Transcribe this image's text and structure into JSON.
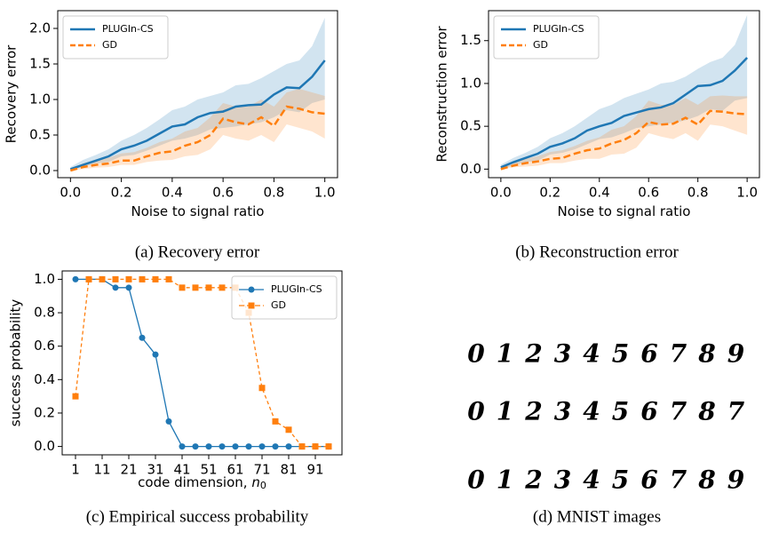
{
  "chart_data": [
    {
      "type": "line",
      "caption": "(a) Recovery error",
      "xlabel": "Noise to signal ratio",
      "ylabel": "Recovery error",
      "x": [
        0,
        0.05,
        0.1,
        0.15,
        0.2,
        0.25,
        0.3,
        0.35,
        0.4,
        0.45,
        0.5,
        0.55,
        0.6,
        0.65,
        0.7,
        0.75,
        0.8,
        0.85,
        0.9,
        0.95,
        1.0
      ],
      "series": [
        {
          "name": "PLUGIn-CS",
          "color": "#1f77b4",
          "dash": false,
          "values": [
            0.02,
            0.08,
            0.14,
            0.2,
            0.3,
            0.35,
            0.42,
            0.52,
            0.62,
            0.65,
            0.75,
            0.81,
            0.83,
            0.9,
            0.92,
            0.93,
            1.07,
            1.17,
            1.16,
            1.32,
            1.55
          ],
          "upper": [
            0.05,
            0.15,
            0.22,
            0.3,
            0.42,
            0.5,
            0.6,
            0.72,
            0.85,
            0.9,
            1.0,
            1.05,
            1.1,
            1.2,
            1.22,
            1.3,
            1.4,
            1.5,
            1.55,
            1.75,
            2.15
          ],
          "lower": [
            0,
            0.05,
            0.1,
            0.12,
            0.2,
            0.22,
            0.28,
            0.35,
            0.42,
            0.45,
            0.5,
            0.58,
            0.6,
            0.62,
            0.65,
            0.68,
            0.75,
            0.85,
            0.82,
            0.95,
            1.0
          ]
        },
        {
          "name": "GD",
          "color": "#ff7f0e",
          "dash": true,
          "values": [
            0,
            0.05,
            0.08,
            0.1,
            0.14,
            0.14,
            0.2,
            0.25,
            0.27,
            0.35,
            0.4,
            0.5,
            0.73,
            0.68,
            0.65,
            0.75,
            0.63,
            0.9,
            0.87,
            0.82,
            0.8
          ],
          "upper": [
            0.02,
            0.1,
            0.15,
            0.18,
            0.24,
            0.26,
            0.32,
            0.4,
            0.45,
            0.55,
            0.6,
            0.75,
            0.95,
            0.9,
            0.9,
            1.0,
            0.9,
            1.1,
            1.15,
            1.1,
            1.05
          ],
          "lower": [
            0,
            0.02,
            0.04,
            0.05,
            0.08,
            0.08,
            0.12,
            0.14,
            0.15,
            0.2,
            0.22,
            0.3,
            0.5,
            0.45,
            0.42,
            0.5,
            0.4,
            0.65,
            0.6,
            0.55,
            0.45
          ]
        }
      ],
      "xlim": [
        -0.05,
        1.05
      ],
      "xticks": [
        {
          "value": 0,
          "label": "0.0"
        },
        0.2,
        0.4,
        0.6,
        0.8,
        {
          "value": 1,
          "label": "1.0"
        }
      ],
      "ylim": [
        -0.1,
        2.25
      ],
      "yticks": [
        {
          "value": 0,
          "label": "0.0"
        },
        0.5,
        {
          "value": 1,
          "label": "1.0"
        },
        1.5,
        {
          "value": 2,
          "label": "2.0"
        }
      ],
      "legend": "upper left"
    },
    {
      "type": "line",
      "caption": "(b) Reconstruction error",
      "xlabel": "Noise to signal ratio",
      "ylabel": "Reconstruction error",
      "x": [
        0,
        0.05,
        0.1,
        0.15,
        0.2,
        0.25,
        0.3,
        0.35,
        0.4,
        0.45,
        0.5,
        0.55,
        0.6,
        0.65,
        0.7,
        0.75,
        0.8,
        0.85,
        0.9,
        0.95,
        1.0
      ],
      "series": [
        {
          "name": "PLUGIn-CS",
          "color": "#1f77b4",
          "dash": false,
          "values": [
            0.02,
            0.08,
            0.13,
            0.18,
            0.26,
            0.3,
            0.36,
            0.45,
            0.5,
            0.54,
            0.62,
            0.66,
            0.7,
            0.72,
            0.77,
            0.87,
            0.97,
            0.98,
            1.03,
            1.15,
            1.3
          ],
          "upper": [
            0.05,
            0.13,
            0.19,
            0.26,
            0.36,
            0.42,
            0.5,
            0.6,
            0.7,
            0.75,
            0.83,
            0.88,
            0.93,
            1.0,
            1.02,
            1.08,
            1.17,
            1.25,
            1.3,
            1.45,
            1.8
          ],
          "lower": [
            0,
            0.04,
            0.08,
            0.1,
            0.17,
            0.19,
            0.23,
            0.29,
            0.35,
            0.37,
            0.42,
            0.48,
            0.5,
            0.52,
            0.54,
            0.57,
            0.62,
            0.7,
            0.68,
            0.8,
            0.83
          ]
        },
        {
          "name": "GD",
          "color": "#ff7f0e",
          "dash": true,
          "values": [
            0,
            0.04,
            0.07,
            0.09,
            0.12,
            0.13,
            0.18,
            0.22,
            0.24,
            0.3,
            0.34,
            0.42,
            0.55,
            0.52,
            0.53,
            0.6,
            0.52,
            0.68,
            0.67,
            0.65,
            0.64
          ],
          "upper": [
            0.02,
            0.08,
            0.12,
            0.15,
            0.2,
            0.22,
            0.27,
            0.33,
            0.37,
            0.46,
            0.5,
            0.62,
            0.8,
            0.75,
            0.75,
            0.83,
            0.75,
            0.85,
            0.86,
            0.85,
            0.85
          ],
          "lower": [
            0,
            0.02,
            0.03,
            0.04,
            0.07,
            0.07,
            0.1,
            0.12,
            0.12,
            0.17,
            0.18,
            0.25,
            0.42,
            0.38,
            0.35,
            0.42,
            0.33,
            0.52,
            0.5,
            0.45,
            0.4
          ]
        }
      ],
      "xlim": [
        -0.05,
        1.05
      ],
      "xticks": [
        {
          "value": 0,
          "label": "0.0"
        },
        0.2,
        0.4,
        0.6,
        0.8,
        {
          "value": 1,
          "label": "1.0"
        }
      ],
      "ylim": [
        -0.1,
        1.85
      ],
      "yticks": [
        {
          "value": 0,
          "label": "0.0"
        },
        0.5,
        {
          "value": 1,
          "label": "1.0"
        },
        1.5
      ],
      "legend": "upper left"
    },
    {
      "type": "line",
      "caption": "(c) Empirical success probability",
      "xlabel": "code dimension, ",
      "xlabel_symbol": "n",
      "xlabel_subscript": "0",
      "ylabel": "success probability",
      "x": [
        1,
        6,
        11,
        16,
        21,
        26,
        31,
        36,
        41,
        46,
        51,
        56,
        61,
        66,
        71,
        76,
        81,
        86,
        91,
        96
      ],
      "series": [
        {
          "name": "PLUGIn-CS",
          "color": "#1f77b4",
          "dash": false,
          "marker": "circle",
          "values": [
            1.0,
            1.0,
            1.0,
            0.95,
            0.95,
            0.65,
            0.55,
            0.15,
            0,
            0,
            0,
            0,
            0,
            0,
            0,
            0,
            0,
            0,
            0,
            0
          ]
        },
        {
          "name": "GD",
          "color": "#ff7f0e",
          "dash": true,
          "marker": "square",
          "values": [
            0.3,
            1.0,
            1.0,
            1.0,
            1.0,
            1.0,
            1.0,
            1.0,
            0.95,
            0.95,
            0.95,
            0.95,
            0.95,
            0.8,
            0.35,
            0.15,
            0.1,
            0,
            0,
            0
          ]
        }
      ],
      "xlim": [
        -4,
        101
      ],
      "xticks": [
        1,
        11,
        21,
        31,
        41,
        51,
        61,
        71,
        81,
        91
      ],
      "ylim": [
        -0.05,
        1.05
      ],
      "yticks": [
        {
          "value": 0,
          "label": "0.0"
        },
        0.2,
        0.4,
        0.6,
        0.8,
        {
          "value": 1,
          "label": "1.0"
        }
      ],
      "legend": "upper right"
    }
  ],
  "mnist": {
    "caption": "(d) MNIST images",
    "rows": [
      [
        "0",
        "1",
        "2",
        "3",
        "4",
        "5",
        "6",
        "7",
        "8",
        "9"
      ],
      [
        "0",
        "1",
        "2",
        "3",
        "4",
        "5",
        "6",
        "7",
        "8",
        "7"
      ],
      [
        "0",
        "1",
        "2",
        "3",
        "4",
        "5",
        "6",
        "7",
        "8",
        "9"
      ]
    ]
  }
}
